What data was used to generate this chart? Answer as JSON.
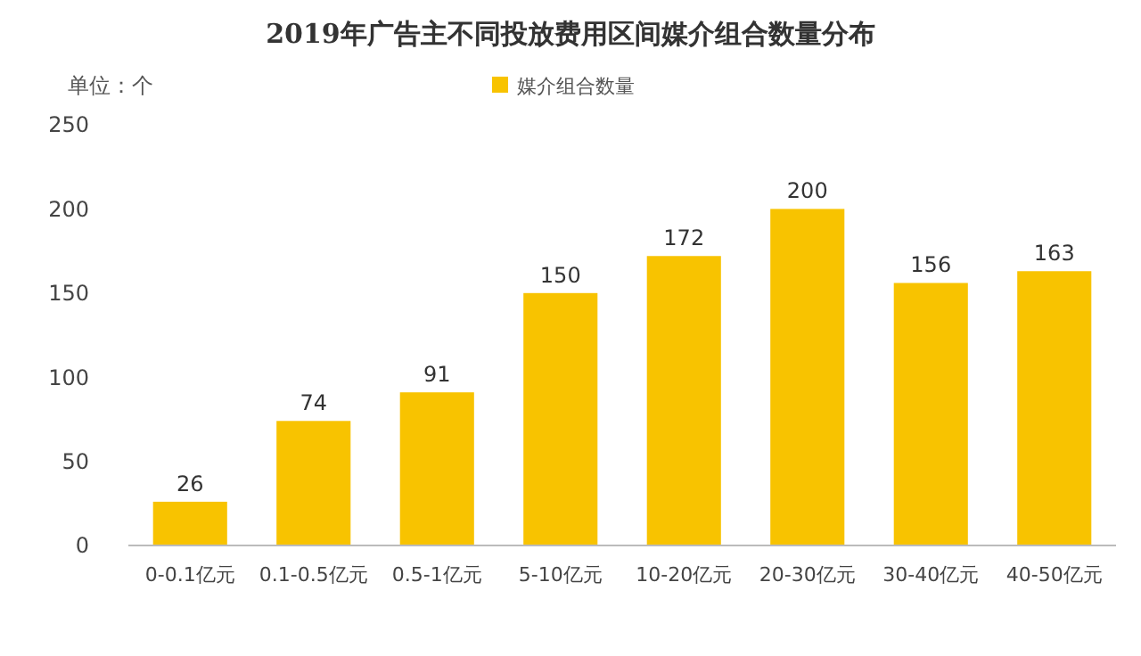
{
  "chart_data": {
    "type": "bar",
    "title": "2019年广告主不同投放费用区间媒介组合数量分布",
    "ylabel": "单位：个",
    "categories": [
      "0-0.1亿元",
      "0.1-0.5亿元",
      "0.5-1亿元",
      "5-10亿元",
      "10-20亿元",
      "20-30亿元",
      "30-40亿元",
      "40-50亿元"
    ],
    "series": [
      {
        "name": "媒介组合数量",
        "color": "#f8c300",
        "values": [
          26,
          74,
          91,
          150,
          172,
          200,
          156,
          163
        ]
      }
    ],
    "ylim": [
      0,
      250
    ],
    "yticks": [
      0,
      50,
      100,
      150,
      200,
      250
    ],
    "data_labels": true,
    "legend": "top",
    "grid": false
  }
}
